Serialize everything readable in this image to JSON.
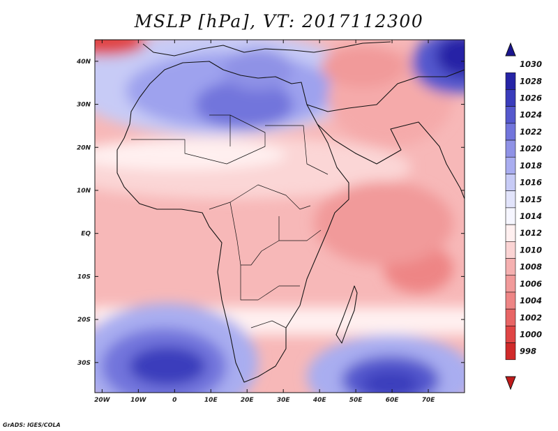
{
  "title": "MSLP [hPa], VT: 2017112300",
  "credit": "GrADS: IGES/COLA",
  "map": {
    "variable": "Mean sea level pressure",
    "units": "hPa",
    "valid_time": "2017112300",
    "region": "Africa",
    "lon_range": [
      -22,
      80
    ],
    "lat_range": [
      -37,
      45
    ],
    "lon_ticks": [
      {
        "value": -20,
        "label": "20W"
      },
      {
        "value": -10,
        "label": "10W"
      },
      {
        "value": 0,
        "label": "0"
      },
      {
        "value": 10,
        "label": "10E"
      },
      {
        "value": 20,
        "label": "20E"
      },
      {
        "value": 30,
        "label": "30E"
      },
      {
        "value": 40,
        "label": "40E"
      },
      {
        "value": 50,
        "label": "50E"
      },
      {
        "value": 60,
        "label": "60E"
      },
      {
        "value": 70,
        "label": "70E"
      }
    ],
    "lat_ticks": [
      {
        "value": 40,
        "label": "40N"
      },
      {
        "value": 30,
        "label": "30N"
      },
      {
        "value": 20,
        "label": "20N"
      },
      {
        "value": 10,
        "label": "10N"
      },
      {
        "value": 0,
        "label": "EQ"
      },
      {
        "value": -10,
        "label": "10S"
      },
      {
        "value": -20,
        "label": "20S"
      },
      {
        "value": -30,
        "label": "30S"
      }
    ],
    "pressure_features": [
      {
        "name": "High over Mediterranean / Libya",
        "lon": 18,
        "lat": 30,
        "value": 1024
      },
      {
        "name": "High over Central Asia",
        "lon": 78,
        "lat": 40,
        "value": 1030
      },
      {
        "name": "South Atlantic High",
        "lon": 0,
        "lat": -31,
        "value": 1026
      },
      {
        "name": "South Indian Ocean High",
        "lon": 58,
        "lat": -34,
        "value": 1026
      },
      {
        "name": "Low over Indian Ocean",
        "lon": 60,
        "lat": -8,
        "value": 1010
      },
      {
        "name": "Low over Mid-Atlantic NW",
        "lon": -20,
        "lat": 45,
        "value": 1002
      }
    ]
  },
  "colorbar": {
    "levels": [
      998,
      1000,
      1002,
      1004,
      1006,
      1008,
      1010,
      1012,
      1014,
      1015,
      1016,
      1018,
      1020,
      1022,
      1024,
      1026,
      1028,
      1030
    ],
    "colors": [
      "#c01a1a",
      "#d02a2a",
      "#e04545",
      "#e86565",
      "#ee8585",
      "#f19a9a",
      "#f5b0b0",
      "#fbd4d4",
      "#fff0f0",
      "#f6f6ff",
      "#e2e4fb",
      "#c7cbf6",
      "#a9adf0",
      "#8f92e6",
      "#7275dc",
      "#5558cd",
      "#3a3cbc",
      "#2624a6",
      "#1a158f"
    ]
  }
}
